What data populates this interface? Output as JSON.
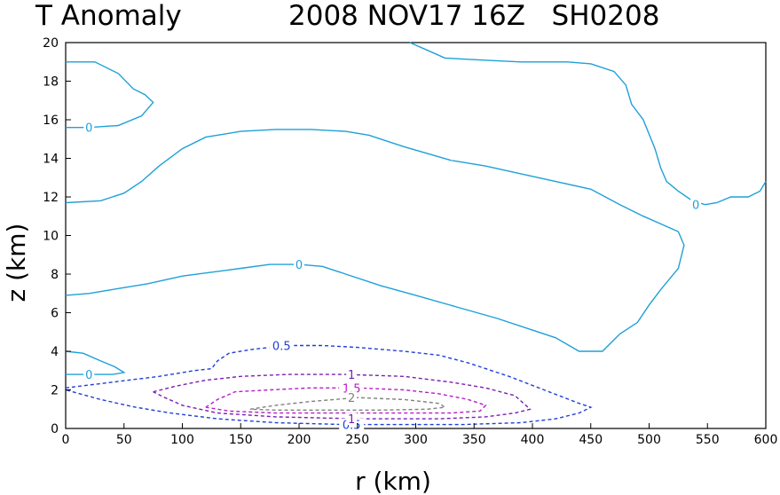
{
  "chart_data": {
    "type": "contour",
    "title_left": "T Anomaly",
    "title_right": "2008 NOV17 16Z   SH0208",
    "xlabel": "r (km)",
    "ylabel": "z (km)",
    "xlim": [
      0,
      600
    ],
    "ylim": [
      0,
      20
    ],
    "xticks": [
      0,
      50,
      100,
      150,
      200,
      250,
      300,
      350,
      400,
      450,
      500,
      550,
      600
    ],
    "yticks": [
      0,
      2,
      4,
      6,
      8,
      10,
      12,
      14,
      16,
      18,
      20
    ],
    "contours": [
      {
        "level": "0",
        "color": "#1ea0d8",
        "dashed": false,
        "points": [
          [
            0,
            19.0
          ],
          [
            25,
            19.0
          ],
          [
            45,
            18.4
          ],
          [
            58,
            17.6
          ],
          [
            68,
            17.3
          ],
          [
            75,
            16.9
          ],
          [
            65,
            16.2
          ],
          [
            45,
            15.7
          ],
          [
            20,
            15.6
          ],
          [
            0,
            15.6
          ]
        ]
      },
      {
        "level": "0",
        "color": "#1ea0d8",
        "dashed": false,
        "points": [
          [
            0,
            11.7
          ],
          [
            30,
            11.8
          ],
          [
            50,
            12.2
          ],
          [
            65,
            12.8
          ],
          [
            80,
            13.6
          ],
          [
            100,
            14.5
          ],
          [
            120,
            15.1
          ],
          [
            150,
            15.4
          ],
          [
            180,
            15.5
          ],
          [
            210,
            15.5
          ],
          [
            240,
            15.4
          ],
          [
            260,
            15.2
          ],
          [
            290,
            14.6
          ],
          [
            330,
            13.9
          ],
          [
            360,
            13.6
          ],
          [
            390,
            13.2
          ],
          [
            420,
            12.8
          ],
          [
            450,
            12.4
          ],
          [
            475,
            11.6
          ],
          [
            495,
            11.0
          ],
          [
            510,
            10.6
          ],
          [
            525,
            10.2
          ],
          [
            530,
            9.5
          ],
          [
            525,
            8.3
          ],
          [
            510,
            7.2
          ],
          [
            500,
            6.4
          ],
          [
            490,
            5.5
          ],
          [
            475,
            4.9
          ],
          [
            460,
            4.0
          ],
          [
            440,
            4.0
          ],
          [
            420,
            4.7
          ],
          [
            400,
            5.1
          ],
          [
            370,
            5.7
          ],
          [
            335,
            6.3
          ],
          [
            300,
            6.9
          ],
          [
            270,
            7.4
          ],
          [
            240,
            8.0
          ],
          [
            220,
            8.4
          ],
          [
            200,
            8.5
          ],
          [
            175,
            8.5
          ],
          [
            150,
            8.3
          ],
          [
            100,
            7.9
          ],
          [
            70,
            7.5
          ],
          [
            40,
            7.2
          ],
          [
            20,
            7.0
          ],
          [
            0,
            6.9
          ]
        ]
      },
      {
        "level": "0",
        "color": "#1ea0d8",
        "dashed": false,
        "points": [
          [
            295,
            20.0
          ],
          [
            310,
            19.6
          ],
          [
            325,
            19.2
          ],
          [
            355,
            19.1
          ],
          [
            390,
            19.0
          ],
          [
            430,
            19.0
          ],
          [
            450,
            18.9
          ],
          [
            470,
            18.5
          ],
          [
            480,
            17.8
          ],
          [
            485,
            16.8
          ],
          [
            495,
            16.0
          ],
          [
            505,
            14.5
          ],
          [
            510,
            13.5
          ],
          [
            515,
            12.8
          ],
          [
            525,
            12.3
          ],
          [
            537,
            11.8
          ],
          [
            548,
            11.6
          ],
          [
            558,
            11.7
          ],
          [
            570,
            12.0
          ],
          [
            585,
            12.0
          ],
          [
            595,
            12.3
          ],
          [
            600,
            12.8
          ]
        ]
      },
      {
        "level": "0",
        "color": "#1ea0d8",
        "dashed": false,
        "points": [
          [
            0,
            4.0
          ],
          [
            15,
            3.9
          ],
          [
            30,
            3.5
          ],
          [
            42,
            3.2
          ],
          [
            50,
            2.9
          ],
          [
            40,
            2.8
          ],
          [
            20,
            2.8
          ],
          [
            0,
            2.8
          ]
        ]
      },
      {
        "level": "0.5",
        "color": "#1f3fd8",
        "dashed": true,
        "points": [
          [
            0,
            2.1
          ],
          [
            40,
            2.4
          ],
          [
            80,
            2.7
          ],
          [
            110,
            3.0
          ],
          [
            125,
            3.1
          ],
          [
            130,
            3.5
          ],
          [
            140,
            3.9
          ],
          [
            160,
            4.1
          ],
          [
            190,
            4.3
          ],
          [
            220,
            4.3
          ],
          [
            250,
            4.2
          ],
          [
            290,
            4.0
          ],
          [
            320,
            3.8
          ],
          [
            345,
            3.4
          ],
          [
            380,
            2.7
          ],
          [
            410,
            2.0
          ],
          [
            440,
            1.3
          ],
          [
            450,
            1.1
          ],
          [
            440,
            0.8
          ],
          [
            420,
            0.5
          ],
          [
            390,
            0.3
          ],
          [
            340,
            0.2
          ],
          [
            280,
            0.2
          ],
          [
            240,
            0.2
          ],
          [
            180,
            0.3
          ],
          [
            130,
            0.5
          ],
          [
            90,
            0.8
          ],
          [
            60,
            1.1
          ],
          [
            30,
            1.5
          ],
          [
            0,
            2.0
          ]
        ]
      },
      {
        "level": "1",
        "color": "#7a1eb4",
        "dashed": true,
        "points": [
          [
            75,
            1.9
          ],
          [
            95,
            2.2
          ],
          [
            120,
            2.5
          ],
          [
            150,
            2.7
          ],
          [
            190,
            2.8
          ],
          [
            240,
            2.8
          ],
          [
            290,
            2.7
          ],
          [
            330,
            2.4
          ],
          [
            360,
            2.1
          ],
          [
            385,
            1.7
          ],
          [
            398,
            1.0
          ],
          [
            385,
            0.8
          ],
          [
            360,
            0.6
          ],
          [
            320,
            0.5
          ],
          [
            250,
            0.5
          ],
          [
            180,
            0.6
          ],
          [
            130,
            0.8
          ],
          [
            100,
            1.2
          ],
          [
            85,
            1.6
          ],
          [
            75,
            1.9
          ]
        ]
      },
      {
        "level": "1.5",
        "color": "#b81ec8",
        "dashed": true,
        "points": [
          [
            120,
            1.1
          ],
          [
            130,
            1.5
          ],
          [
            145,
            1.9
          ],
          [
            175,
            2.0
          ],
          [
            210,
            2.1
          ],
          [
            250,
            2.1
          ],
          [
            290,
            2.0
          ],
          [
            320,
            1.8
          ],
          [
            345,
            1.5
          ],
          [
            360,
            1.2
          ],
          [
            355,
            0.9
          ],
          [
            330,
            0.8
          ],
          [
            280,
            0.8
          ],
          [
            230,
            0.8
          ],
          [
            180,
            0.8
          ],
          [
            140,
            0.9
          ],
          [
            120,
            1.1
          ]
        ]
      },
      {
        "level": "2",
        "color": "#808080",
        "dashed": true,
        "points": [
          [
            158,
            1.0
          ],
          [
            180,
            1.2
          ],
          [
            210,
            1.4
          ],
          [
            250,
            1.6
          ],
          [
            290,
            1.5
          ],
          [
            320,
            1.3
          ],
          [
            325,
            1.1
          ],
          [
            310,
            1.0
          ],
          [
            270,
            0.95
          ],
          [
            220,
            0.95
          ],
          [
            180,
            0.95
          ],
          [
            158,
            1.0
          ]
        ]
      }
    ],
    "contour_labels": [
      {
        "text": "0",
        "r": 20,
        "z": 15.6,
        "color": "#1ea0d8"
      },
      {
        "text": "0",
        "r": 200,
        "z": 8.5,
        "color": "#1ea0d8"
      },
      {
        "text": "0",
        "r": 540,
        "z": 11.6,
        "color": "#1ea0d8"
      },
      {
        "text": "0",
        "r": 20,
        "z": 2.8,
        "color": "#1ea0d8"
      },
      {
        "text": "0.5",
        "r": 185,
        "z": 4.3,
        "color": "#1f3fd8"
      },
      {
        "text": "0.5",
        "r": 245,
        "z": 0.2,
        "color": "#1f3fd8"
      },
      {
        "text": "1",
        "r": 245,
        "z": 2.8,
        "color": "#7a1eb4"
      },
      {
        "text": "1",
        "r": 245,
        "z": 0.5,
        "color": "#7a1eb4"
      },
      {
        "text": "1.5",
        "r": 245,
        "z": 2.1,
        "color": "#b81ec8"
      },
      {
        "text": "2",
        "r": 245,
        "z": 1.6,
        "color": "#808080"
      }
    ]
  }
}
